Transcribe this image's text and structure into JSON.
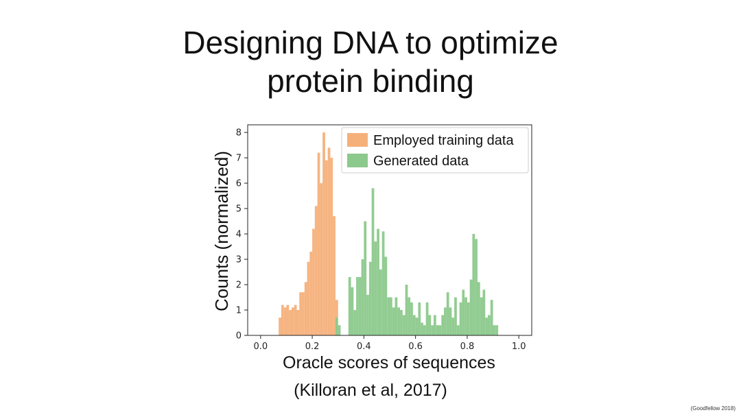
{
  "slide": {
    "title_lines": [
      "Designing DNA to optimize",
      "protein binding"
    ],
    "citation": "(Killoran et al, 2017)",
    "footer": "(Goodfellow 2018)"
  },
  "chart_data": {
    "type": "bar",
    "title": "",
    "xlabel": "Oracle scores of sequences",
    "ylabel": "Counts (normalized)",
    "xlim": [
      -0.05,
      1.05
    ],
    "ylim": [
      0,
      8.3
    ],
    "xticks": [
      0.0,
      0.2,
      0.4,
      0.6,
      0.8,
      1.0
    ],
    "xtick_labels": [
      "0.0",
      "0.2",
      "0.4",
      "0.6",
      "0.8",
      "1.0"
    ],
    "yticks": [
      0,
      1,
      2,
      3,
      4,
      5,
      6,
      7,
      8
    ],
    "ytick_labels": [
      "0",
      "1",
      "2",
      "3",
      "4",
      "5",
      "6",
      "7",
      "8"
    ],
    "grid": false,
    "legend_position": "top-right",
    "series": [
      {
        "name": "Employed training data",
        "color": "#f5b07a",
        "bin_width": 0.01,
        "x": [
          0.07,
          0.08,
          0.09,
          0.1,
          0.11,
          0.12,
          0.13,
          0.14,
          0.15,
          0.16,
          0.17,
          0.18,
          0.19,
          0.2,
          0.21,
          0.22,
          0.23,
          0.24,
          0.25,
          0.26,
          0.27,
          0.28,
          0.29
        ],
        "values": [
          0.7,
          1.2,
          1.1,
          1.2,
          1.0,
          1.1,
          1.2,
          1.0,
          1.7,
          1.7,
          2.1,
          2.9,
          3.3,
          4.2,
          5.1,
          7.2,
          6.0,
          8.0,
          6.9,
          7.4,
          7.0,
          4.7,
          1.4
        ]
      },
      {
        "name": "Generated data",
        "color": "#8cc98c",
        "bin_width": 0.01,
        "x": [
          0.29,
          0.3,
          0.34,
          0.35,
          0.36,
          0.37,
          0.38,
          0.39,
          0.4,
          0.41,
          0.42,
          0.43,
          0.44,
          0.45,
          0.46,
          0.47,
          0.48,
          0.49,
          0.5,
          0.51,
          0.52,
          0.53,
          0.54,
          0.55,
          0.56,
          0.57,
          0.58,
          0.59,
          0.6,
          0.61,
          0.62,
          0.63,
          0.64,
          0.65,
          0.66,
          0.67,
          0.68,
          0.69,
          0.7,
          0.71,
          0.72,
          0.73,
          0.74,
          0.75,
          0.76,
          0.77,
          0.78,
          0.79,
          0.8,
          0.81,
          0.82,
          0.83,
          0.84,
          0.85,
          0.86,
          0.87,
          0.88,
          0.89,
          0.9,
          0.91
        ],
        "values": [
          0.7,
          0.4,
          2.3,
          1.9,
          1.0,
          2.3,
          2.3,
          3.0,
          4.5,
          1.6,
          2.9,
          5.8,
          3.7,
          4.2,
          2.6,
          4.1,
          3.1,
          1.5,
          1.5,
          1.1,
          1.5,
          1.1,
          1.0,
          0.8,
          2.0,
          1.5,
          1.3,
          0.8,
          0.7,
          1.3,
          0.5,
          0.4,
          1.3,
          0.8,
          0.4,
          0.8,
          0.4,
          0.4,
          0.8,
          1.1,
          1.7,
          1.1,
          0.7,
          1.5,
          0.4,
          1.3,
          1.8,
          1.5,
          1.3,
          2.2,
          4.0,
          3.8,
          2.1,
          1.5,
          1.8,
          0.7,
          0.8,
          1.4,
          0.4,
          0.4
        ]
      }
    ]
  }
}
